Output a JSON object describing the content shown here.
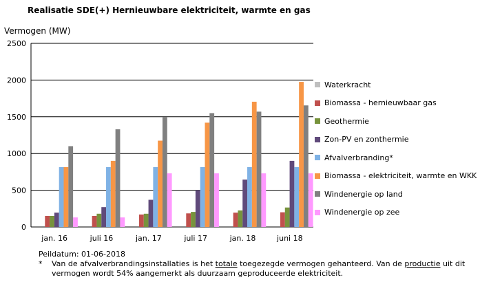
{
  "title": "Realisatie SDE(+) Hernieuwbare elektriciteit, warmte en gas",
  "footer": {
    "date": "Peildatum: 01-06-2018",
    "star": "*",
    "note_part1": "Van de afvalverbrandingsinstallaties is het ",
    "note_u1": "totale",
    "note_part2": " toegezegde vermogen gehanteerd. Van de ",
    "note_u2": "productie",
    "note_part3": " uit dit vermogen wordt 54% aangemerkt als duurzaam geproduceerde elektriciteit."
  },
  "chart_data": {
    "type": "bar",
    "title": "Realisatie SDE(+) Hernieuwbare elektriciteit, warmte en gas",
    "ylabel": "Vermogen (MW)",
    "xlabel": "",
    "ylim": [
      0,
      2500
    ],
    "yticks": [
      0,
      500,
      1000,
      1500,
      2000,
      2500
    ],
    "grid": true,
    "legend_position": "right",
    "categories": [
      "jan. 16",
      "juli 16",
      "jan. 17",
      "juli 17",
      "jan. 18",
      "juni 18"
    ],
    "series": [
      {
        "name": "Waterkracht",
        "color": "#bfbfbf",
        "values": [
          0,
          0,
          0,
          0,
          0,
          0
        ]
      },
      {
        "name": "Biomassa - hernieuwbaar gas",
        "color": "#c0504d",
        "values": [
          150,
          150,
          170,
          185,
          195,
          200
        ]
      },
      {
        "name": "Geothermie",
        "color": "#77933c",
        "values": [
          150,
          180,
          180,
          205,
          225,
          265
        ]
      },
      {
        "name": "Zon-PV en zonthermie",
        "color": "#604a7b",
        "values": [
          195,
          270,
          370,
          500,
          645,
          900
        ]
      },
      {
        "name": "Afvalverbranding*",
        "color": "#7fb2e5",
        "values": [
          815,
          815,
          815,
          815,
          815,
          815
        ]
      },
      {
        "name": "Biomassa - elektriciteit, warmte en WKK",
        "color": "#f79646",
        "values": [
          815,
          900,
          1175,
          1420,
          1705,
          1975
        ]
      },
      {
        "name": "Windenergie op land",
        "color": "#808080",
        "values": [
          1100,
          1330,
          1495,
          1550,
          1570,
          1655
        ]
      },
      {
        "name": "Windenergie op zee",
        "color": "#ff99ff",
        "values": [
          130,
          130,
          730,
          730,
          730,
          730
        ]
      }
    ]
  }
}
